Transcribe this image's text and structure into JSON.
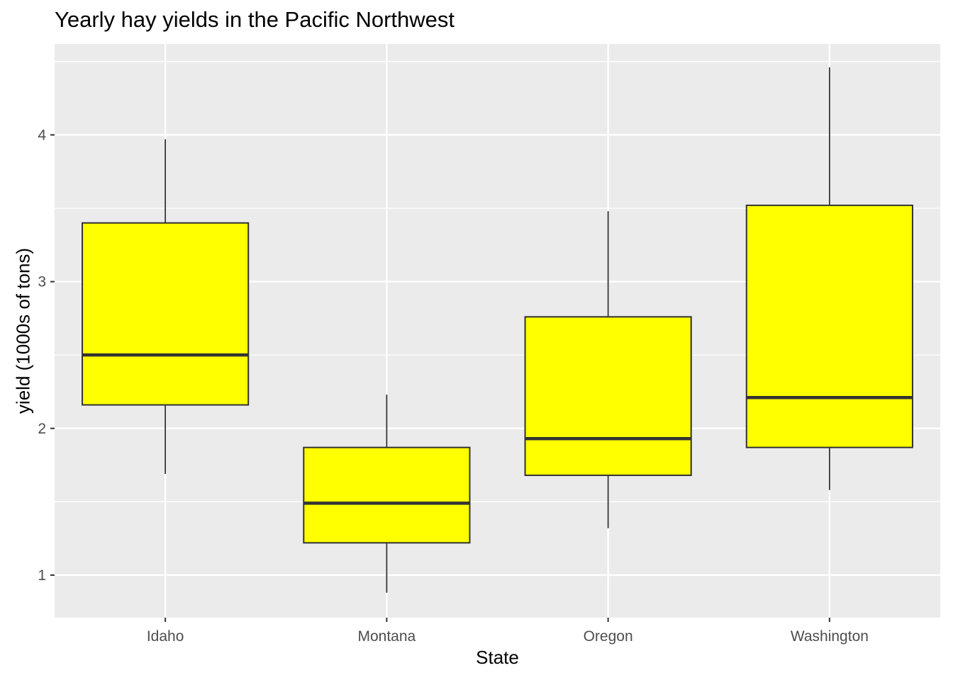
{
  "chart_data": {
    "type": "boxplot",
    "title": "Yearly hay yields in the Pacific Northwest",
    "xlabel": "State",
    "ylabel": "yield (1000s of tons)",
    "categories": [
      "Idaho",
      "Montana",
      "Oregon",
      "Washington"
    ],
    "boxes": [
      {
        "category": "Idaho",
        "min": 1.69,
        "q1": 2.16,
        "median": 2.5,
        "q3": 3.4,
        "max": 3.97
      },
      {
        "category": "Montana",
        "min": 0.88,
        "q1": 1.22,
        "median": 1.49,
        "q3": 1.87,
        "max": 2.23
      },
      {
        "category": "Oregon",
        "min": 1.32,
        "q1": 1.68,
        "median": 1.93,
        "q3": 2.76,
        "max": 3.48
      },
      {
        "category": "Washington",
        "min": 1.58,
        "q1": 1.87,
        "median": 2.21,
        "q3": 3.52,
        "max": 4.46
      }
    ],
    "yticks": [
      1,
      2,
      3,
      4
    ],
    "ylim": [
      0.71,
      4.62
    ],
    "grid": true,
    "fill_color": "#FFFF00",
    "outline_color": "#333333",
    "panel_background": "#EBEBEB",
    "grid_color": "#FFFFFF"
  }
}
